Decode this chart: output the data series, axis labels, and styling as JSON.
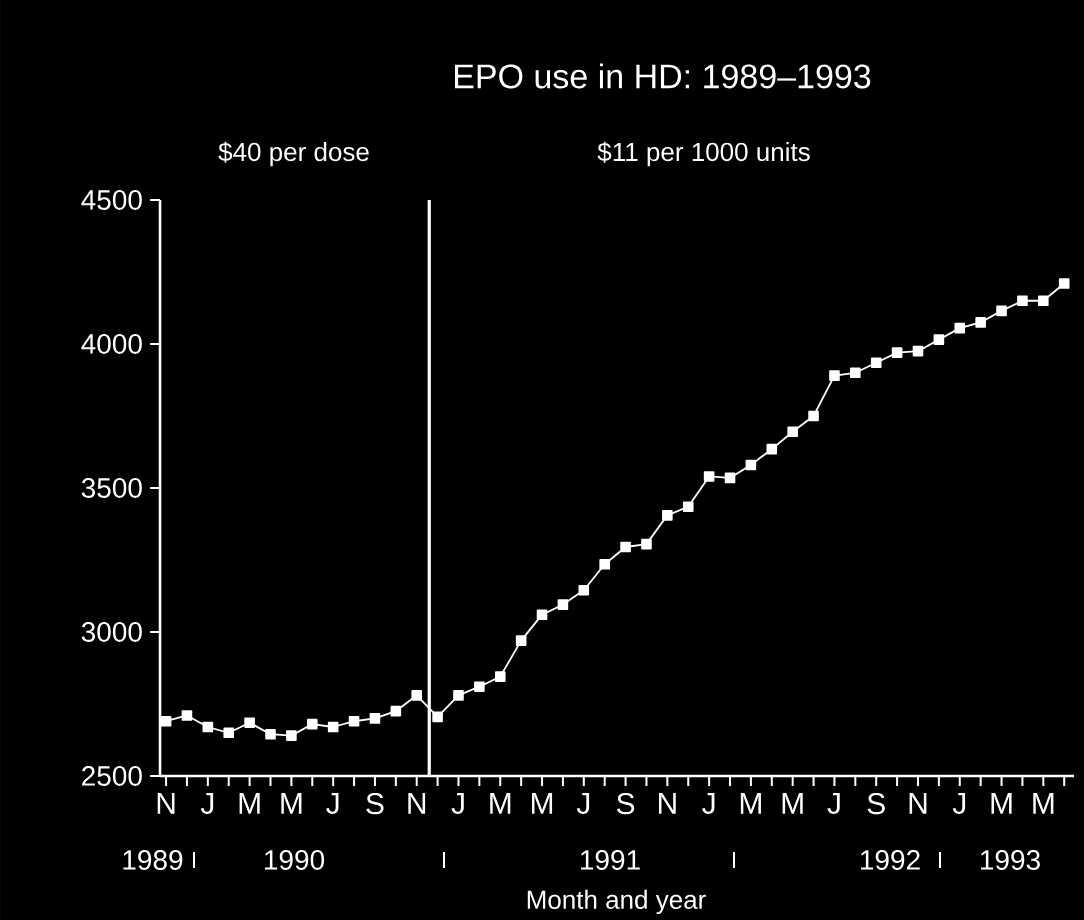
{
  "chart_data": {
    "type": "line",
    "title": "EPO use in HD: 1989–1993",
    "xlabel": "Month and year",
    "categories": [
      "N",
      null,
      "J",
      null,
      "M",
      null,
      "M",
      null,
      "J",
      null,
      "S",
      null,
      "N",
      null,
      "J",
      null,
      "M",
      null,
      "M",
      null,
      "J",
      null,
      "S",
      null,
      "N",
      null,
      "J",
      null,
      "M",
      null,
      "M",
      null,
      "J",
      null,
      "S",
      null,
      "N",
      null,
      "J",
      null,
      "M",
      null,
      "M",
      null
    ],
    "values": [
      2690,
      2710,
      2670,
      2650,
      2685,
      2645,
      2640,
      2680,
      2670,
      2690,
      2700,
      2725,
      2780,
      2705,
      2780,
      2810,
      2845,
      2970,
      3060,
      3095,
      3145,
      3235,
      3295,
      3305,
      3405,
      3435,
      3540,
      3535,
      3580,
      3635,
      3695,
      3750,
      3890,
      3900,
      3935,
      3970,
      3975,
      4015,
      4055,
      4075,
      4115,
      4150,
      4150,
      4210
    ],
    "color": "#ffffff",
    "marker": "square",
    "line_style": "solid",
    "ylim": [
      2500,
      4500
    ],
    "yticks": [
      2500,
      3000,
      3500,
      4000,
      4500
    ],
    "annotations": [
      "$40 per dose",
      "$11 per 1000 units",
      "1989",
      "1990",
      "1991",
      "1992",
      "1993"
    ]
  }
}
